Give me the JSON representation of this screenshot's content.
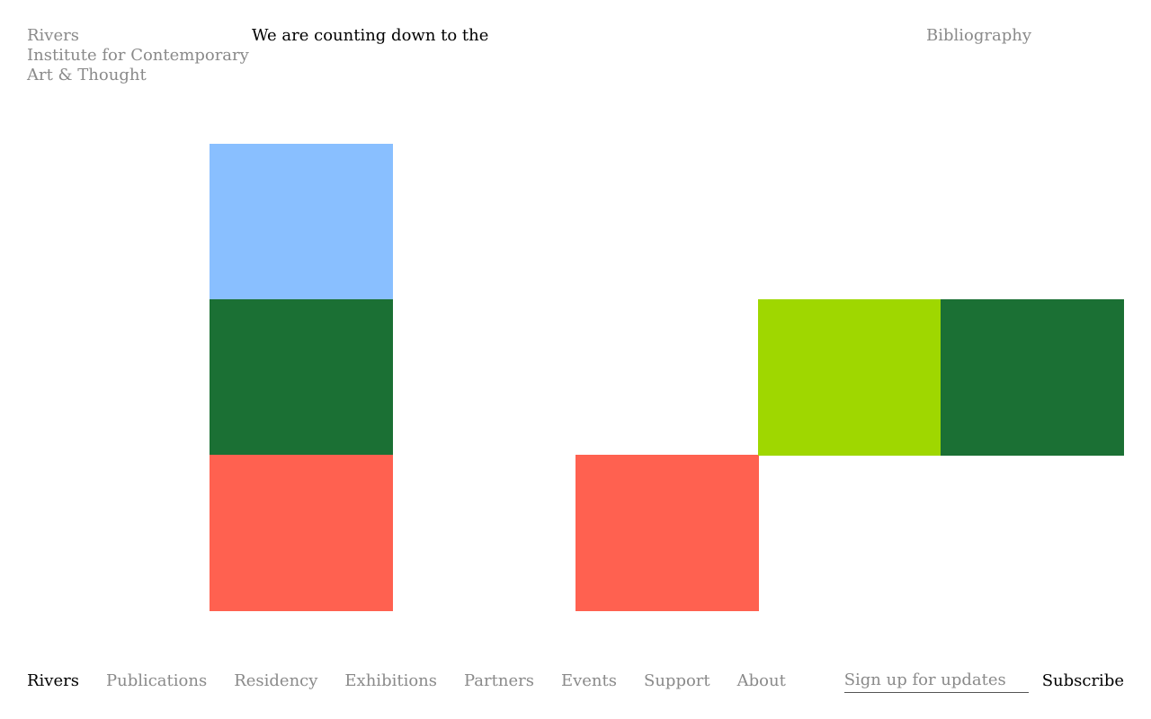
{
  "header": {
    "brand_lines": [
      "Rivers",
      "Institute for Contemporary",
      "Art & Thought"
    ],
    "tagline": "We are counting down to the",
    "bibliography_label": "Bibliography"
  },
  "blocks": [
    {
      "name": "block-light-blue",
      "color": "#89bfff"
    },
    {
      "name": "block-dark-green",
      "color": "#1b7034"
    },
    {
      "name": "block-red",
      "color": "#ff6150"
    },
    {
      "name": "block-red",
      "color": "#ff6150"
    },
    {
      "name": "block-lime",
      "color": "#9fd700"
    },
    {
      "name": "block-dark-green",
      "color": "#1b7034"
    }
  ],
  "footer": {
    "nav": [
      {
        "label": "Rivers",
        "active": true
      },
      {
        "label": "Publications",
        "active": false
      },
      {
        "label": "Residency",
        "active": false
      },
      {
        "label": "Exhibitions",
        "active": false
      },
      {
        "label": "Partners",
        "active": false
      },
      {
        "label": "Events",
        "active": false
      },
      {
        "label": "Support",
        "active": false
      },
      {
        "label": "About",
        "active": false
      }
    ],
    "signup_placeholder": "Sign up for updates",
    "subscribe_label": "Subscribe"
  }
}
